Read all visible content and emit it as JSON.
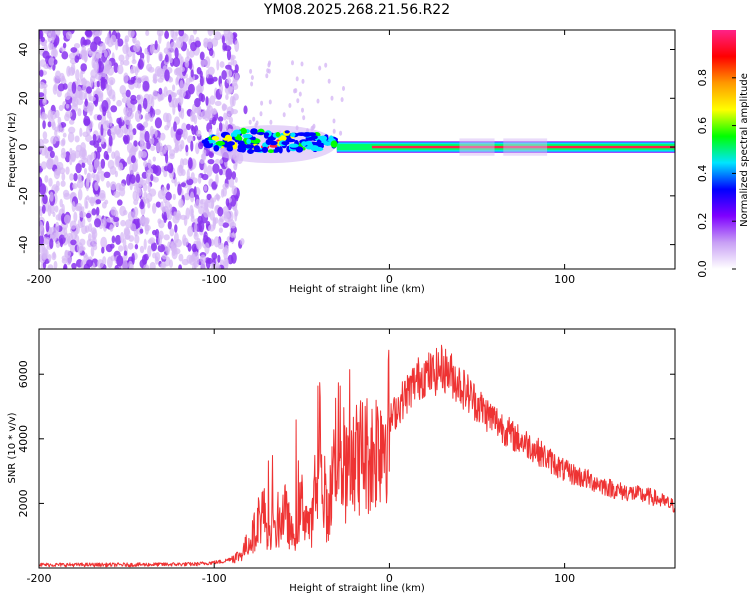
{
  "title": "YM08.2025.268.21.56.R22",
  "colors": {
    "snr_line": "#ee3333",
    "frame": "#000000",
    "noise": "#8833ee",
    "noise_light": "#d6b8f5"
  },
  "chart_data": [
    {
      "type": "heatmap",
      "name": "spectrogram",
      "xlabel": "Height of straight line (km)",
      "ylabel": "Frequency (Hz)",
      "xlim": [
        -200,
        163
      ],
      "ylim": [
        -50,
        48
      ],
      "xticks": [
        -200,
        -100,
        0,
        100
      ],
      "yticks": [
        -40,
        -20,
        0,
        20,
        40
      ],
      "xtick_labels": [
        "-200",
        "-100",
        "0",
        "100"
      ],
      "ytick_labels": [
        "-40",
        "-20",
        "0",
        "20",
        "40"
      ],
      "grid": false,
      "noise_region_x": [
        -200,
        -87
      ],
      "signal_band": {
        "x_start": -105,
        "x_end": 163,
        "center_hz": 0,
        "wide_section_x": [
          -105,
          -30
        ],
        "wide_section_halfwidth_hz": 6,
        "narrow_halfwidth_hz": 1.5
      },
      "colorbar": {
        "label": "Normalized spectral amplitude",
        "range": [
          0,
          1
        ],
        "ticks": [
          0.0,
          0.2,
          0.4,
          0.6,
          0.8
        ],
        "tick_labels": [
          "0.0",
          "0.2",
          "0.4",
          "0.6",
          "0.8"
        ],
        "stops": [
          "#ffffff",
          "#c89ff5",
          "#7f00ff",
          "#0000ff",
          "#00e5ff",
          "#00ff00",
          "#ffff00",
          "#ff9900",
          "#ff0000",
          "#ff2288"
        ]
      }
    },
    {
      "type": "line",
      "name": "snr",
      "xlabel": "Height of straight line (km)",
      "ylabel": "SNR (10 * v/v)",
      "xlim": [
        -200,
        163
      ],
      "ylim": [
        0,
        7400
      ],
      "xticks": [
        -200,
        -100,
        0,
        100
      ],
      "yticks": [
        2000,
        4000,
        6000
      ],
      "xtick_labels": [
        "-200",
        "-100",
        "0",
        "100"
      ],
      "ytick_labels": [
        "2000",
        "4000",
        "6000"
      ],
      "grid": false,
      "series": [
        {
          "name": "SNR",
          "x": [
            -200,
            -150,
            -110,
            -95,
            -85,
            -78,
            -72,
            -68,
            -64,
            -60,
            -55,
            -50,
            -45,
            -40,
            -35,
            -30,
            -25,
            -20,
            -15,
            -10,
            -5,
            0,
            5,
            10,
            15,
            20,
            25,
            30,
            35,
            40,
            45,
            50,
            55,
            60,
            70,
            80,
            90,
            100,
            110,
            120,
            130,
            140,
            150,
            163
          ],
          "values": [
            100,
            100,
            120,
            200,
            400,
            1000,
            1800,
            800,
            1200,
            1800,
            900,
            2000,
            1200,
            3000,
            1500,
            4200,
            2800,
            3300,
            3600,
            3500,
            4100,
            4500,
            5000,
            5400,
            5800,
            6000,
            6000,
            6200,
            6000,
            5700,
            5400,
            5100,
            4800,
            4600,
            4100,
            3800,
            3400,
            3000,
            2800,
            2600,
            2400,
            2300,
            2200,
            1900
          ]
        }
      ]
    }
  ]
}
